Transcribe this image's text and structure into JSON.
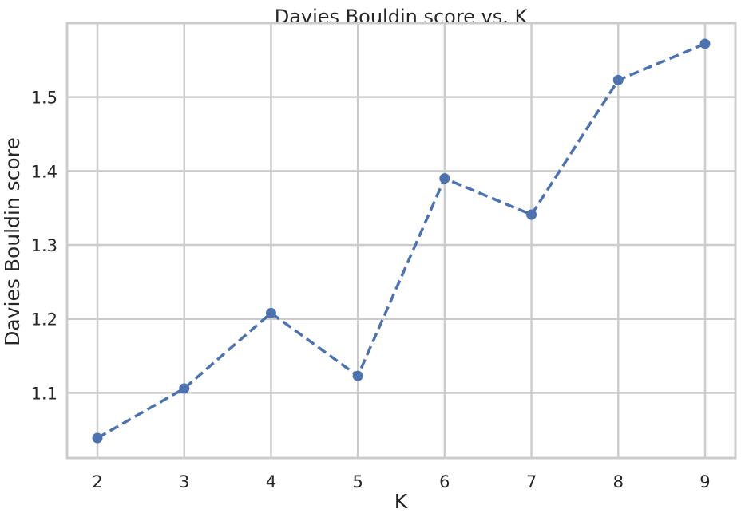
{
  "chart_data": {
    "type": "line",
    "title": "Davies Bouldin score vs. K",
    "xlabel": "K",
    "ylabel": "Davies Bouldin score",
    "x": [
      2,
      3,
      4,
      5,
      6,
      7,
      8,
      9
    ],
    "x_ticks": [
      "2",
      "3",
      "4",
      "5",
      "6",
      "7",
      "8",
      "9"
    ],
    "xlim": [
      1.65,
      9.35
    ],
    "y_ticks": [
      "1.1",
      "1.2",
      "1.3",
      "1.4",
      "1.5"
    ],
    "y_tick_values": [
      1.1,
      1.2,
      1.3,
      1.4,
      1.5
    ],
    "ylim": [
      1.012,
      1.6
    ],
    "grid": true,
    "legend": "none",
    "series": [
      {
        "values": [
          1.039,
          1.106,
          1.208,
          1.123,
          1.39,
          1.341,
          1.523,
          1.572
        ],
        "color": "#4c72b0",
        "line_style": "dashed",
        "marker": "circle"
      }
    ]
  },
  "style": {
    "grid_color": "#cccccc",
    "frame_color": "#cccccc",
    "background_color": "#ffffff"
  }
}
